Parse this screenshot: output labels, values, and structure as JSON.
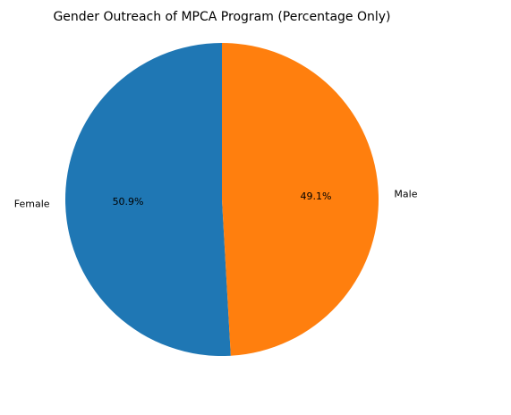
{
  "chart_data": {
    "type": "pie",
    "title": "Gender Outreach of MPCA Program (Percentage Only)",
    "categories": [
      "Female",
      "Male"
    ],
    "values": [
      50.9,
      49.1
    ],
    "value_labels": [
      "50.9%",
      "49.1%"
    ],
    "colors": [
      "#1f77b4",
      "#ff7f0e"
    ],
    "startangle": 90
  }
}
